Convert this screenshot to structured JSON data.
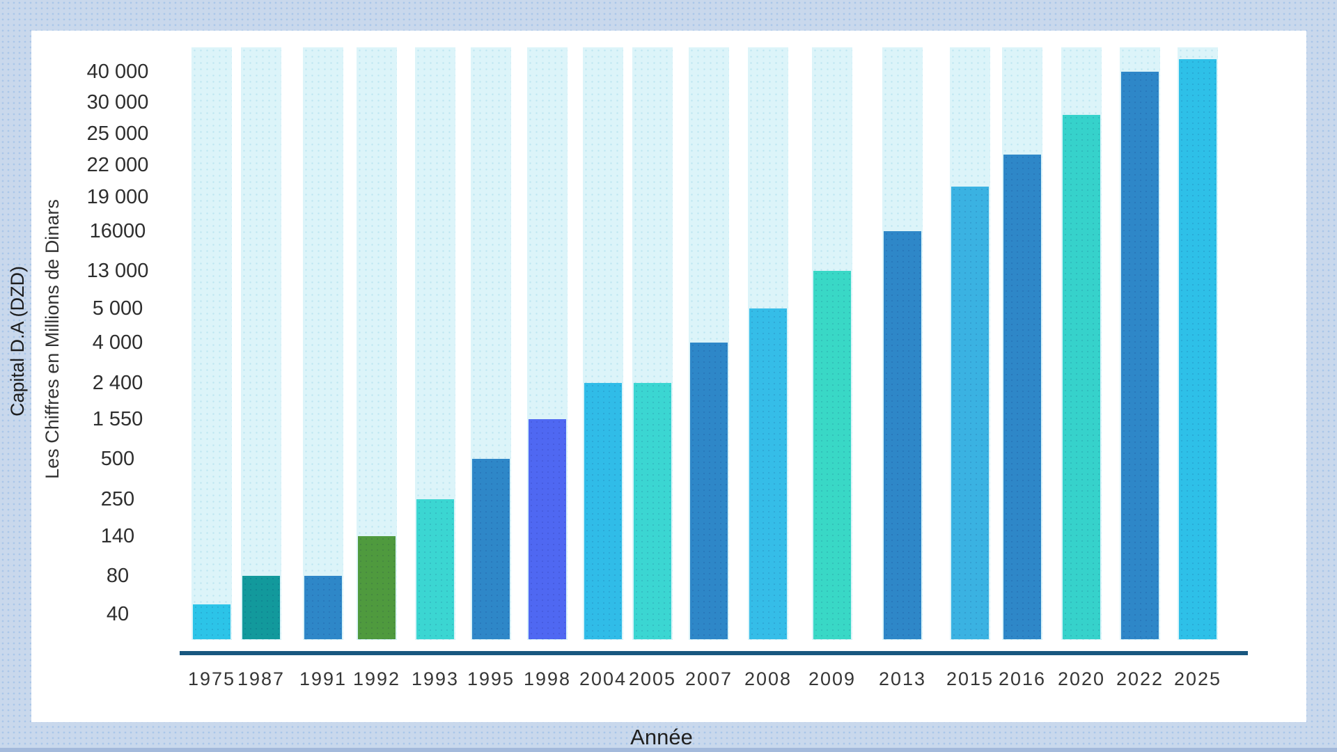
{
  "chart": {
    "y_axis_title_outer": "Capital D.A (DZD)",
    "y_axis_title_inner": "Les Chiffres en Millions de Dinars",
    "x_axis_title": "Année"
  },
  "chart_data": {
    "type": "bar",
    "title": "",
    "xlabel": "Année",
    "ylabel": "Capital D.A (DZD) / Les Chiffres en Millions de Dinars",
    "categories": [
      "1975",
      "1987",
      "1991",
      "1992",
      "1993",
      "1995",
      "1998",
      "2004",
      "2005",
      "2007",
      "2008",
      "2009",
      "2013",
      "2015",
      "2016",
      "2020",
      "2022",
      "2025"
    ],
    "values": [
      50,
      80,
      80,
      140,
      250,
      500,
      1550,
      2400,
      2400,
      4000,
      5000,
      13000,
      16000,
      20000,
      23000,
      28000,
      40000,
      44000
    ],
    "bar_colors": [
      "#2cc4e8",
      "#12999c",
      "#2e87c8",
      "#4f9a3e",
      "#3bd6d2",
      "#2e87c8",
      "#4f68f2",
      "#30bce8",
      "#3bd6d2",
      "#2e87c8",
      "#35bde8",
      "#39d8c6",
      "#2e87c8",
      "#3ab2e2",
      "#2e87c8",
      "#36d2cb",
      "#2e87c8",
      "#2ec0e8"
    ],
    "y_ticks": [
      40,
      80,
      140,
      250,
      500,
      1550,
      2400,
      4000,
      5000,
      13000,
      16000,
      19000,
      22000,
      25000,
      30000,
      40000
    ],
    "y_tick_labels": [
      "40 000",
      "30 000",
      "25 000",
      "22 000",
      "19 000",
      "16000",
      "13 000",
      "5 000",
      "4 000",
      "2 400",
      "1 550",
      "500",
      "250",
      "140",
      "80",
      "40"
    ],
    "axis_scale": "ordinal-ticks-evenly-spaced",
    "ylim": [
      0,
      44000
    ],
    "grid": false,
    "legend": false,
    "track_color": "#dcf4f9",
    "axis_line_color": "#18577f",
    "background_color": "#c9d8ec",
    "card_color": "#ffffff"
  }
}
